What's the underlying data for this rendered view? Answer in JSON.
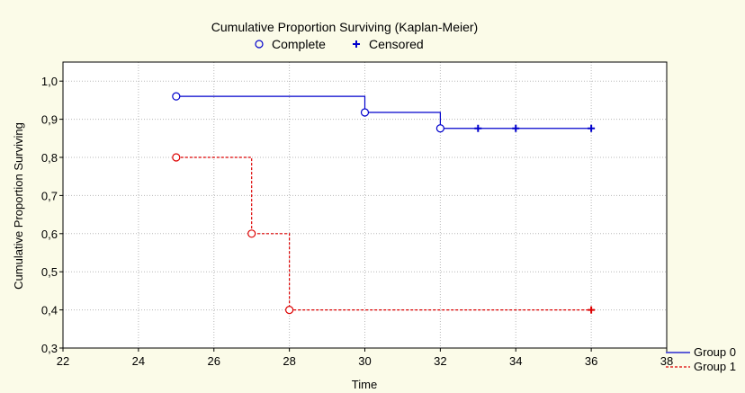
{
  "chart_data": {
    "type": "line",
    "title": "Cumulative Proportion Surviving (Kaplan-Meier)",
    "xlabel": "Time",
    "ylabel": "Cumulative Proportion Surviving",
    "xlim": [
      22,
      38
    ],
    "ylim": [
      0.3,
      1.05
    ],
    "xticks": [
      22,
      24,
      26,
      28,
      30,
      32,
      34,
      36,
      38
    ],
    "xtick_labels": [
      "22",
      "24",
      "26",
      "28",
      "30",
      "32",
      "34",
      "36",
      "38"
    ],
    "yticks": [
      0.3,
      0.4,
      0.5,
      0.6,
      0.7,
      0.8,
      0.9,
      1.0
    ],
    "ytick_labels": [
      "0,3",
      "0,4",
      "0,5",
      "0,6",
      "0,7",
      "0,8",
      "0,9",
      "1,0"
    ],
    "grid": true,
    "marker_legend": [
      {
        "label": "Complete",
        "marker": "circle"
      },
      {
        "label": "Censored",
        "marker": "plus"
      }
    ],
    "series": [
      {
        "name": "Group 0",
        "color": "#0000cc",
        "dash": false,
        "x": [
          25,
          30,
          32,
          36
        ],
        "y": [
          0.96,
          0.918,
          0.876,
          0.876
        ],
        "complete": [
          [
            25,
            0.96
          ],
          [
            30,
            0.918
          ],
          [
            32,
            0.876
          ]
        ],
        "censored": [
          [
            33,
            0.876
          ],
          [
            34,
            0.876
          ],
          [
            36,
            0.876
          ]
        ]
      },
      {
        "name": "Group 1",
        "color": "#dd0000",
        "dash": true,
        "x": [
          25,
          27,
          28,
          36
        ],
        "y": [
          0.8,
          0.6,
          0.4,
          0.4
        ],
        "complete": [
          [
            25,
            0.8
          ],
          [
            27,
            0.6
          ],
          [
            28,
            0.4
          ]
        ],
        "censored": [
          [
            36,
            0.4
          ]
        ]
      }
    ],
    "legend_position": "bottom-right"
  }
}
